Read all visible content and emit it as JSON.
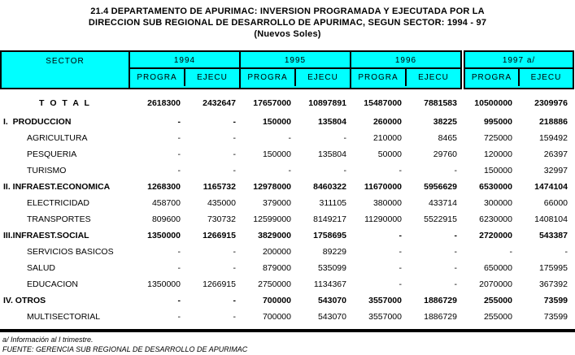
{
  "title": {
    "line1": "21.4  DEPARTAMENTO DE APURIMAC: INVERSION PROGRAMADA Y EJECUTADA POR LA",
    "line2": "DIRECCION SUB REGIONAL DE DESARROLLO DE APURIMAC, SEGUN SECTOR: 1994 - 97",
    "line3": "(Nuevos Soles)"
  },
  "colors": {
    "header_bg": "#00FFFF",
    "border": "#000000",
    "text": "#000000"
  },
  "table": {
    "sector_header": "SECTOR",
    "year_groups": [
      {
        "year": "1994",
        "subcols": [
          "PROGRA",
          "EJECU"
        ]
      },
      {
        "year": "1995",
        "subcols": [
          "PROGRA",
          "EJECU"
        ]
      },
      {
        "year": "1996",
        "subcols": [
          "PROGRA",
          "EJECU"
        ]
      },
      {
        "year": "1997  a/",
        "subcols": [
          "PROGRA",
          "EJECU"
        ]
      }
    ],
    "rows": [
      {
        "label": "T O T A L",
        "level": "total",
        "values": [
          "2618300",
          "2432647",
          "17657000",
          "10897891",
          "15487000",
          "7881583",
          "10500000",
          "2309976"
        ]
      },
      {
        "label": "I.  PRODUCCION",
        "level": "section",
        "values": [
          "-",
          "-",
          "150000",
          "135804",
          "260000",
          "38225",
          "995000",
          "218886"
        ]
      },
      {
        "label": "AGRICULTURA",
        "level": "sub",
        "values": [
          "-",
          "-",
          "-",
          "-",
          "210000",
          "8465",
          "725000",
          "159492"
        ]
      },
      {
        "label": "PESQUERIA",
        "level": "sub",
        "values": [
          "-",
          "-",
          "150000",
          "135804",
          "50000",
          "29760",
          "120000",
          "26397"
        ]
      },
      {
        "label": "TURISMO",
        "level": "sub",
        "values": [
          "-",
          "-",
          "-",
          "-",
          "-",
          "-",
          "150000",
          "32997"
        ]
      },
      {
        "label": "II. INFRAEST.ECONOMICA",
        "level": "section",
        "values": [
          "1268300",
          "1165732",
          "12978000",
          "8460322",
          "11670000",
          "5956629",
          "6530000",
          "1474104"
        ]
      },
      {
        "label": "ELECTRICIDAD",
        "level": "sub",
        "values": [
          "458700",
          "435000",
          "379000",
          "311105",
          "380000",
          "433714",
          "300000",
          "66000"
        ]
      },
      {
        "label": "TRANSPORTES",
        "level": "sub",
        "values": [
          "809600",
          "730732",
          "12599000",
          "8149217",
          "11290000",
          "5522915",
          "6230000",
          "1408104"
        ]
      },
      {
        "label": "III.INFRAEST.SOCIAL",
        "level": "section",
        "values": [
          "1350000",
          "1266915",
          "3829000",
          "1758695",
          "-",
          "-",
          "2720000",
          "543387"
        ]
      },
      {
        "label": "SERVICIOS BASICOS",
        "level": "sub",
        "values": [
          "-",
          "-",
          "200000",
          "89229",
          "-",
          "-",
          "-",
          "-"
        ]
      },
      {
        "label": "SALUD",
        "level": "sub",
        "values": [
          "-",
          "-",
          "879000",
          "535099",
          "-",
          "-",
          "650000",
          "175995"
        ]
      },
      {
        "label": "EDUCACION",
        "level": "sub",
        "values": [
          "1350000",
          "1266915",
          "2750000",
          "1134367",
          "-",
          "-",
          "2070000",
          "367392"
        ]
      },
      {
        "label": "IV. OTROS",
        "level": "section",
        "values": [
          "-",
          "-",
          "700000",
          "543070",
          "3557000",
          "1886729",
          "255000",
          "73599"
        ]
      },
      {
        "label": "MULTISECTORIAL",
        "level": "sub",
        "values": [
          "-",
          "-",
          "700000",
          "543070",
          "3557000",
          "1886729",
          "255000",
          "73599"
        ]
      }
    ]
  },
  "footnotes": {
    "note": "a/ Información al I trimestre.",
    "source": "FUENTE: GERENCIA SUB REGIONAL DE DESARROLLO DE APURIMAC"
  }
}
